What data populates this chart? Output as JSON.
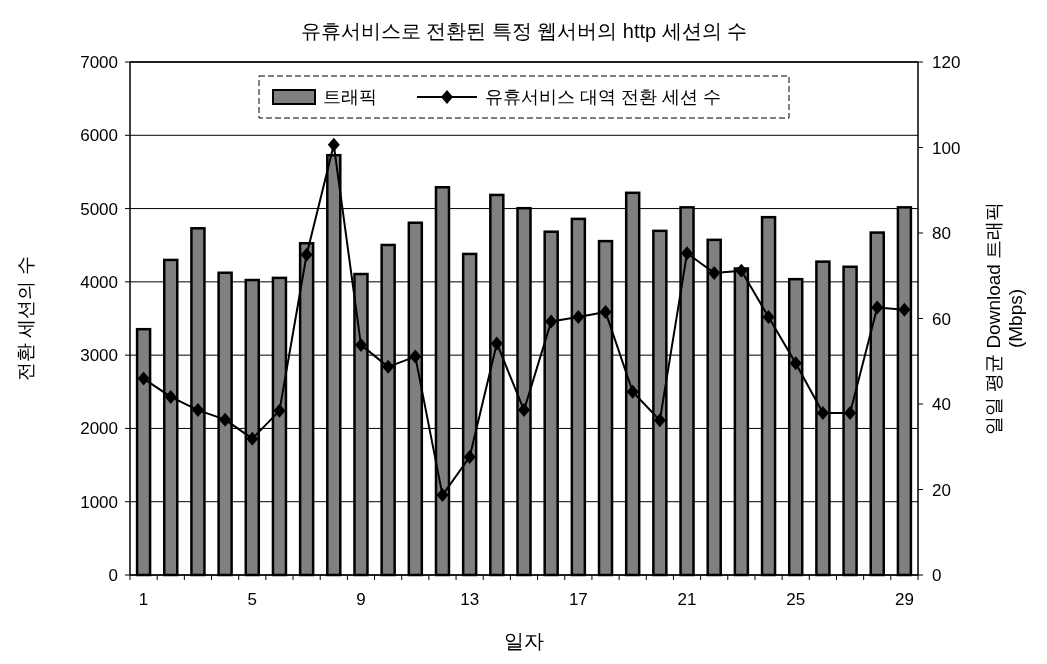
{
  "chart_data": {
    "type": "bar",
    "title": "유휴서비스로 전환된 특정 웹서버의 http 세션의 수",
    "xlabel": "일자",
    "ylabel": "전환 세션의 수",
    "y2label": "일일 평균 Download 트래픽 (Mbps)",
    "categories": [
      "1",
      null,
      null,
      null,
      "5",
      null,
      null,
      null,
      "9",
      null,
      null,
      null,
      "13",
      null,
      null,
      null,
      "17",
      null,
      null,
      null,
      "21",
      null,
      null,
      null,
      "25",
      null,
      null,
      null,
      "29"
    ],
    "series": [
      {
        "name": "트래픽",
        "axis": "y2",
        "color": "#808080",
        "values": [
          57.5,
          73.7,
          81.1,
          70.7,
          69.0,
          69.5,
          77.6,
          98.2,
          70.4,
          77.2,
          82.4,
          90.7,
          75.1,
          88.9,
          85.8,
          80.3,
          83.3,
          78.1,
          89.4,
          80.5,
          86.0,
          78.4,
          71.7,
          83.7,
          69.2,
          73.3,
          72.1,
          80.1,
          86.0
        ]
      },
      {
        "name": "유휴서비스 대역 전환 세션 수",
        "type": "line",
        "color": "#000000",
        "values": [
          2680,
          2430,
          2250,
          2120,
          1860,
          2240,
          4370,
          5870,
          3140,
          2840,
          2980,
          1090,
          1610,
          3160,
          2250,
          3460,
          3520,
          3590,
          2500,
          2110,
          4390,
          4120,
          4150,
          3520,
          2890,
          2210,
          2210,
          3650,
          3620
        ]
      }
    ],
    "ylim": [
      0,
      7000
    ],
    "yticks": [
      0,
      1000,
      2000,
      3000,
      4000,
      5000,
      6000,
      7000
    ],
    "y2lim": [
      0,
      120
    ],
    "y2ticks": [
      0,
      20,
      40,
      60,
      80,
      100,
      120
    ],
    "grid": "y",
    "legend": "top",
    "marker": "diamond"
  }
}
